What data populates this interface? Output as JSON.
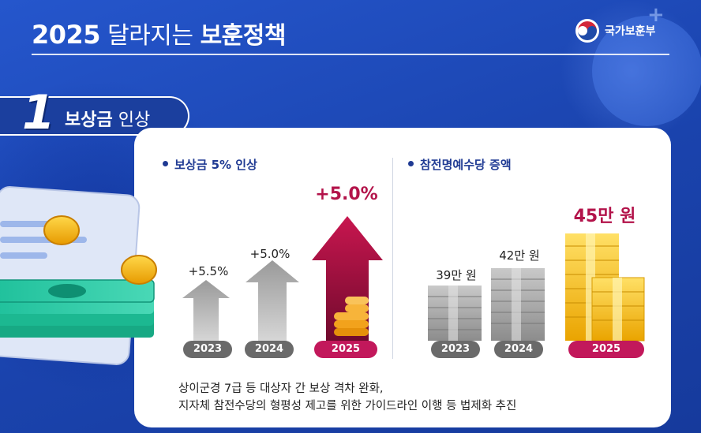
{
  "header": {
    "title_year": "2025",
    "title_light": "달라지는",
    "title_bold": "보훈정책",
    "ministry": "국가보훈부"
  },
  "section": {
    "number": "1",
    "title_bold": "보상금",
    "title_light": "인상"
  },
  "compensation": {
    "heading": "보상금 5% 인상",
    "items": [
      {
        "year": "2023",
        "label": "+5.5%"
      },
      {
        "year": "2024",
        "label": "+5.0%"
      },
      {
        "year": "2025",
        "label": "+5.0%"
      }
    ]
  },
  "honor_allowance": {
    "heading": "참전명예수당 증액",
    "items": [
      {
        "year": "2023",
        "label": "39만 원"
      },
      {
        "year": "2024",
        "label": "42만 원"
      },
      {
        "year": "2025",
        "label": "45만 원"
      }
    ]
  },
  "caption": {
    "line1": "상이군경 7급 등 대상자 간 보상 격차 완화,",
    "line2": "지자체 참전수당의 형평성 제고를 위한 가이드라인 이행 등 법제화 추진"
  },
  "colors": {
    "background": "#1d49b8",
    "accent_red": "#b3134a",
    "heading_blue": "#1f3a93",
    "gold": "#f2b400"
  }
}
